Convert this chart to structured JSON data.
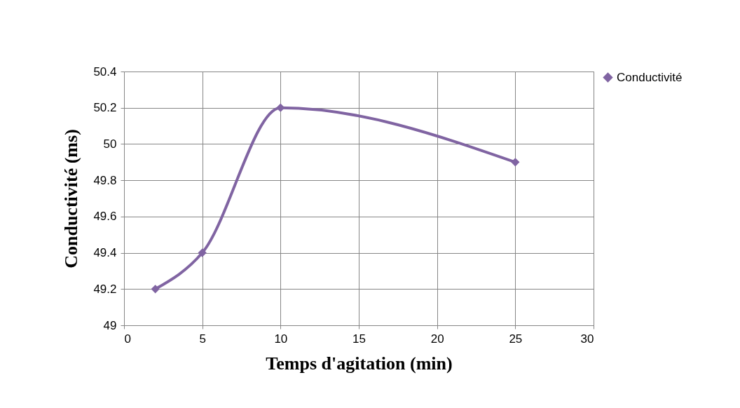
{
  "chart_data": {
    "type": "line",
    "xlabel": "Temps d'agitation (min)",
    "ylabel": "Conductivité (ms)",
    "x": [
      2,
      5,
      10,
      25
    ],
    "series": [
      {
        "name": "Conductivité",
        "color": "#8064a2",
        "values": [
          49.2,
          49.4,
          50.2,
          49.9
        ]
      }
    ],
    "xlim": [
      0,
      30
    ],
    "xticks": [
      0,
      5,
      10,
      15,
      20,
      25,
      30
    ],
    "ylim": [
      49,
      50.4
    ],
    "yticks": [
      49,
      49.2,
      49.4,
      49.6,
      49.8,
      50,
      50.2,
      50.4
    ],
    "grid": true,
    "legend": "right",
    "marker": "diamond",
    "line_style": "solid"
  }
}
